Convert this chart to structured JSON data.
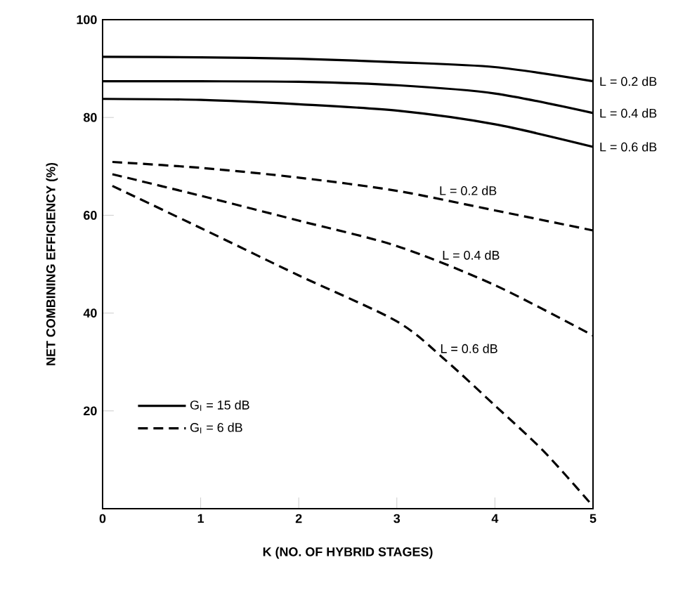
{
  "chart_data": {
    "type": "line",
    "xlabel": "K (NO. OF HYBRID STAGES)",
    "ylabel": "NET COMBINING EFFICIENCY (%)",
    "xlim": [
      0,
      5
    ],
    "ylim": [
      0,
      100
    ],
    "xticks": [
      0,
      1,
      2,
      3,
      4,
      5
    ],
    "yticks": [
      {
        "value": 0,
        "label": null
      },
      20,
      40,
      60,
      80,
      100
    ],
    "marker": "none",
    "legend": "bottom left",
    "series": [
      {
        "name": "G$_{I}$ = 15 dB",
        "color": "#000000",
        "line_style": "solid",
        "x": [
          0,
          1,
          2,
          3,
          4,
          5
        ],
        "values": [
          92.4,
          92.3,
          92,
          91.3,
          90.3,
          87.4
        ]
      },
      {
        "color": "#000000",
        "line_style": "solid",
        "x": [
          0,
          1,
          2,
          3,
          4,
          5
        ],
        "values": [
          87.4,
          87.4,
          87.3,
          86.6,
          84.9,
          80.9
        ]
      },
      {
        "color": "#000000",
        "line_style": "solid",
        "x": [
          0,
          1,
          2,
          3,
          4,
          5
        ],
        "values": [
          83.8,
          83.6,
          82.7,
          81.4,
          78.6,
          74
        ]
      },
      {
        "name": "G$_{I}$ = 6 dB",
        "color": "#000000",
        "line_style": "dashed",
        "x": [
          0.1,
          1,
          2,
          3,
          4,
          5
        ],
        "values": [
          70.9,
          69.7,
          67.7,
          65,
          61,
          56.9
        ]
      },
      {
        "color": "#000000",
        "line_style": "dashed",
        "x": [
          0.1,
          1,
          2,
          3,
          4,
          5
        ],
        "values": [
          68.4,
          64,
          58.9,
          53.7,
          45.7,
          35.4
        ]
      },
      {
        "color": "#000000",
        "line_style": "dashed",
        "x": [
          0.1,
          1,
          2,
          3,
          3.5,
          4,
          4.5,
          5
        ],
        "values": [
          66,
          57.4,
          47.7,
          38.3,
          30.3,
          21.1,
          11.7,
          0.5
        ]
      }
    ],
    "annotations": [
      {
        "text": "L = 0.2 dB",
        "x": 5,
        "y": 87.4
      },
      {
        "text": "L = 0.4 dB",
        "x": 5,
        "y": 80.9
      },
      {
        "text": "L = 0.6 dB",
        "x": 5,
        "y": 74
      },
      {
        "text": "L = 0.2 dB",
        "x": 3.41,
        "y": 63.4
      },
      {
        "text": "L = 0.4 dB",
        "x": 3.44,
        "y": 50.2
      },
      {
        "text": "L = 0.6 dB",
        "x": 3.42,
        "y": 31.1
      }
    ]
  }
}
